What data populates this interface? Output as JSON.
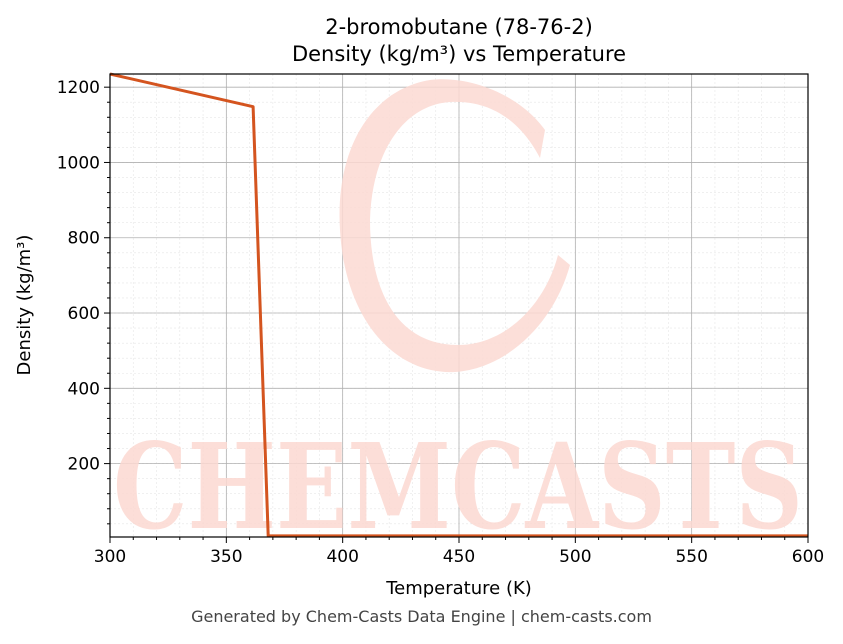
{
  "chart_data": {
    "type": "line",
    "title_line1": "2-bromobutane (78-76-2)",
    "title_line2": "Density (kg/m³) vs Temperature",
    "xlabel": "Temperature (K)",
    "ylabel": "Density (kg/m³)",
    "xlim": [
      300,
      600
    ],
    "ylim": [
      5,
      1235
    ],
    "xticks": [
      300,
      350,
      400,
      450,
      500,
      550,
      600
    ],
    "yticks": [
      200,
      400,
      600,
      800,
      1000,
      1200
    ],
    "grid": true,
    "line_color": "#d4541f",
    "series": [
      {
        "x": [
          300,
          361.5,
          368,
          600
        ],
        "y": [
          1235,
          1148,
          8,
          8
        ]
      }
    ]
  },
  "watermark": {
    "text": "CHEMCASTS",
    "color": "#fcd9d2"
  },
  "footer": "Generated by Chem-Casts Data Engine | chem-casts.com"
}
